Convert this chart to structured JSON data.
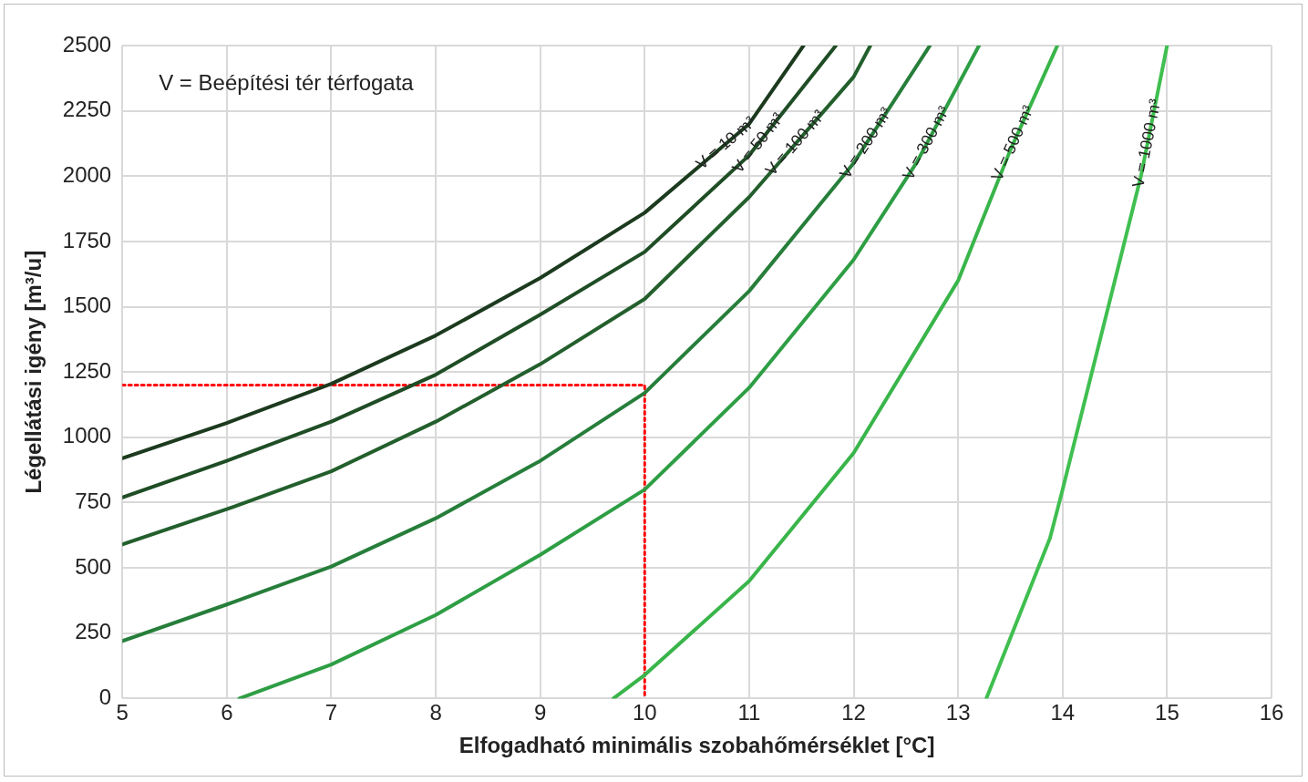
{
  "chart_data": {
    "type": "line",
    "xlabel": "Elfogadható minimális szobahőmérséklet [°C]",
    "ylabel": "Légellátási igény [m³/u]",
    "annotations": [
      "V = Beépítési tér térfogata"
    ],
    "xlim": [
      5,
      16
    ],
    "xticks": [
      5,
      6,
      7,
      8,
      9,
      10,
      11,
      12,
      13,
      14,
      15,
      16
    ],
    "ylim": [
      0,
      2500
    ],
    "yticks": [
      0,
      250,
      500,
      750,
      1000,
      1250,
      1500,
      1750,
      2000,
      2250,
      2500
    ],
    "grid": true,
    "legend": false,
    "marker": "none",
    "line_style": "solid",
    "series": [
      {
        "name": "V = 10 m³",
        "color": "#1c3a1e",
        "x": [
          5,
          6,
          7,
          8,
          9,
          10,
          11,
          11.52
        ],
        "values": [
          920,
          1055,
          1205,
          1390,
          1610,
          1860,
          2200,
          2500
        ]
      },
      {
        "name": "V = 50 m³",
        "color": "#1f4d25",
        "x": [
          5,
          6,
          7,
          8,
          9,
          10,
          11,
          11.83
        ],
        "values": [
          770,
          910,
          1060,
          1240,
          1470,
          1710,
          2080,
          2500
        ]
      },
      {
        "name": "V = 100 m³",
        "color": "#235f2c",
        "x": [
          5,
          6,
          7,
          8,
          9,
          10,
          11,
          12,
          12.16
        ],
        "values": [
          590,
          725,
          870,
          1060,
          1280,
          1530,
          1920,
          2380,
          2500
        ]
      },
      {
        "name": "V = 200 m³",
        "color": "#267e3a",
        "x": [
          5,
          6,
          7,
          8,
          9,
          10,
          11,
          12,
          12.73
        ],
        "values": [
          220,
          360,
          505,
          690,
          910,
          1170,
          1560,
          2050,
          2500
        ]
      },
      {
        "name": "V = 300 m³",
        "color": "#2e9e44",
        "x": [
          6.12,
          7,
          8,
          9,
          10,
          11,
          12,
          12.6,
          13.2
        ],
        "values": [
          0,
          130,
          320,
          550,
          800,
          1190,
          1680,
          2050,
          2500
        ]
      },
      {
        "name": "V = 500 m³",
        "color": "#39b54a",
        "x": [
          9.7,
          10,
          11,
          12,
          13,
          13.5,
          13.95
        ],
        "values": [
          0,
          90,
          450,
          940,
          1600,
          2100,
          2500
        ]
      },
      {
        "name": "V = 1000 m³",
        "color": "#3fbf4f",
        "x": [
          13.27,
          13.88,
          14,
          14.75,
          15
        ],
        "values": [
          0,
          615,
          800,
          2000,
          2500
        ]
      },
      {
        "color": "#ff0000",
        "line_style": "dotted",
        "x": [
          5,
          10,
          10
        ],
        "values": [
          1200,
          1200,
          0
        ]
      }
    ]
  }
}
